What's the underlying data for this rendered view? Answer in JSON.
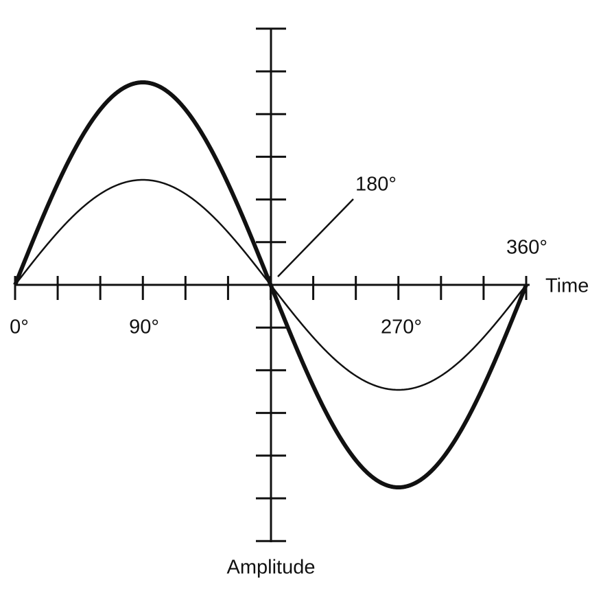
{
  "labels": {
    "zero": "0°",
    "ninety": "90°",
    "one_eighty": "180°",
    "two_seventy": "270°",
    "three_sixty": "360°",
    "time": "Time",
    "amplitude": "Amplitude"
  }
}
